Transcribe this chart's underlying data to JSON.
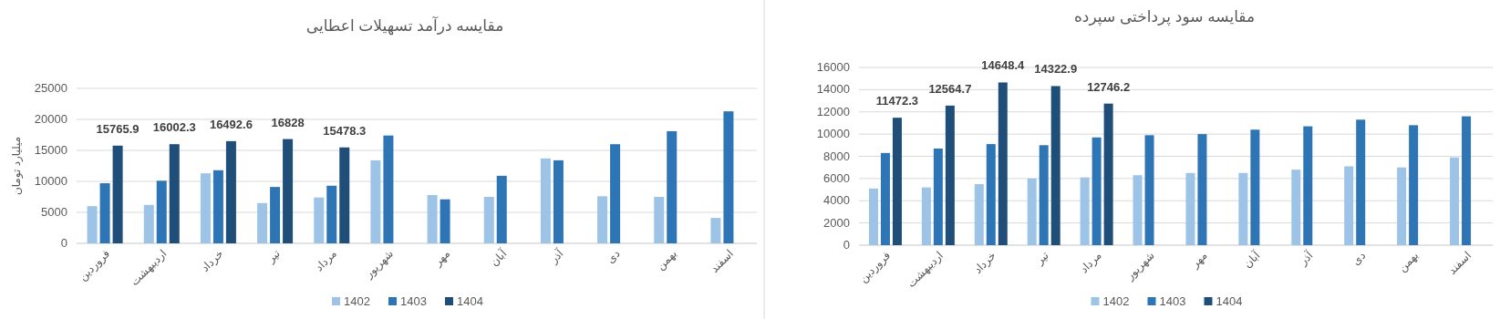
{
  "chart_data": [
    {
      "type": "bar",
      "title": "مقایسه درآمد تسهیلات اعطایی",
      "ylabel": "میلیارد تومان",
      "categories": [
        "فروردین",
        "اردیبهشت",
        "خرداد",
        "تیر",
        "مرداد",
        "شهریور",
        "مهر",
        "آبان",
        "آذر",
        "دی",
        "بهمن",
        "اسفند"
      ],
      "series": [
        {
          "name": "1402",
          "color": "#9dc3e6",
          "values": [
            6000,
            6200,
            11300,
            6500,
            7400,
            13400,
            7800,
            7500,
            13700,
            7600,
            7500,
            4100
          ]
        },
        {
          "name": "1403",
          "color": "#2e75b6",
          "values": [
            9700,
            10100,
            11800,
            9100,
            9300,
            17400,
            7100,
            10900,
            13400,
            16000,
            18100,
            21300
          ]
        },
        {
          "name": "1404",
          "color": "#1f4e79",
          "values": [
            15765.9,
            16002.3,
            16492.6,
            16828,
            15478.3,
            null,
            null,
            null,
            null,
            null,
            null,
            null
          ],
          "value_labels": [
            "15765.9",
            "16002.3",
            "16492.6",
            "16828",
            "15478.3",
            null,
            null,
            null,
            null,
            null,
            null,
            null
          ]
        }
      ],
      "ylim": [
        0,
        25000
      ],
      "yticks": [
        0,
        5000,
        10000,
        15000,
        20000,
        25000
      ],
      "grid": "y",
      "legend": "bottom"
    },
    {
      "type": "bar",
      "title": "مقایسه سود پرداختی سپرده",
      "categories": [
        "فروردین",
        "اردیبهشت",
        "خرداد",
        "تیر",
        "مرداد",
        "شهریور",
        "مهر",
        "آبان",
        "آذر",
        "دی",
        "بهمن",
        "اسفند"
      ],
      "series": [
        {
          "name": "1402",
          "color": "#9dc3e6",
          "values": [
            5100,
            5200,
            5500,
            6000,
            6100,
            6300,
            6500,
            6500,
            6800,
            7100,
            7000,
            7900
          ]
        },
        {
          "name": "1403",
          "color": "#2e75b6",
          "values": [
            8300,
            8700,
            9100,
            9000,
            9700,
            9900,
            10000,
            10400,
            10700,
            11300,
            10800,
            11600
          ]
        },
        {
          "name": "1404",
          "color": "#1f4e79",
          "values": [
            11472.3,
            12564.7,
            14648.4,
            14322.9,
            12746.2,
            null,
            null,
            null,
            null,
            null,
            null,
            null
          ],
          "value_labels": [
            "11472.3",
            "12564.7",
            "14648.4",
            "14322.9",
            "12746.2",
            null,
            null,
            null,
            null,
            null,
            null,
            null
          ]
        }
      ],
      "ylim": [
        0,
        16000
      ],
      "yticks": [
        0,
        2000,
        4000,
        6000,
        8000,
        10000,
        12000,
        14000,
        16000
      ],
      "grid": "y",
      "legend": "bottom"
    }
  ]
}
